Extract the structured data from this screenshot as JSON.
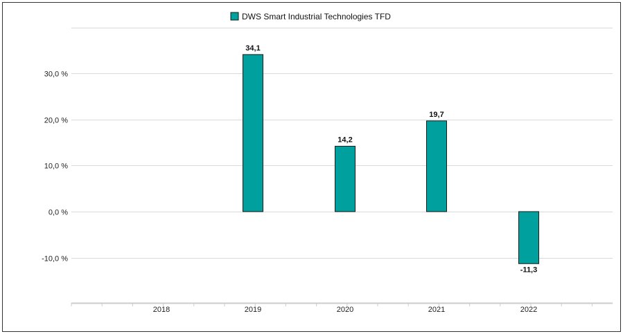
{
  "chart_data": {
    "type": "bar",
    "title": "",
    "xlabel": "",
    "ylabel": "",
    "categories": [
      "2018",
      "2019",
      "2020",
      "2021",
      "2022"
    ],
    "series": [
      {
        "name": "DWS Smart Industrial Technologies TFD",
        "values": [
          null,
          34.1,
          14.2,
          19.7,
          -11.3
        ],
        "labels": [
          "",
          "34,1",
          "14,2",
          "19,7",
          "-11,3"
        ],
        "color": "#00A09E"
      }
    ],
    "y_ticks": [
      30,
      20,
      10,
      0,
      -10
    ],
    "y_tick_labels": [
      "30,0 %",
      "20,0 %",
      "10,0 %",
      "0,0 %",
      "-10,0 %"
    ],
    "ylim": [
      -20,
      40
    ],
    "grid": true,
    "legend_position": "top-center"
  },
  "colors": {
    "bar": "#00A09E",
    "bar_stroke": "#1a1a1a",
    "grid": "#d9d9d9",
    "axis": "#cccccc"
  }
}
